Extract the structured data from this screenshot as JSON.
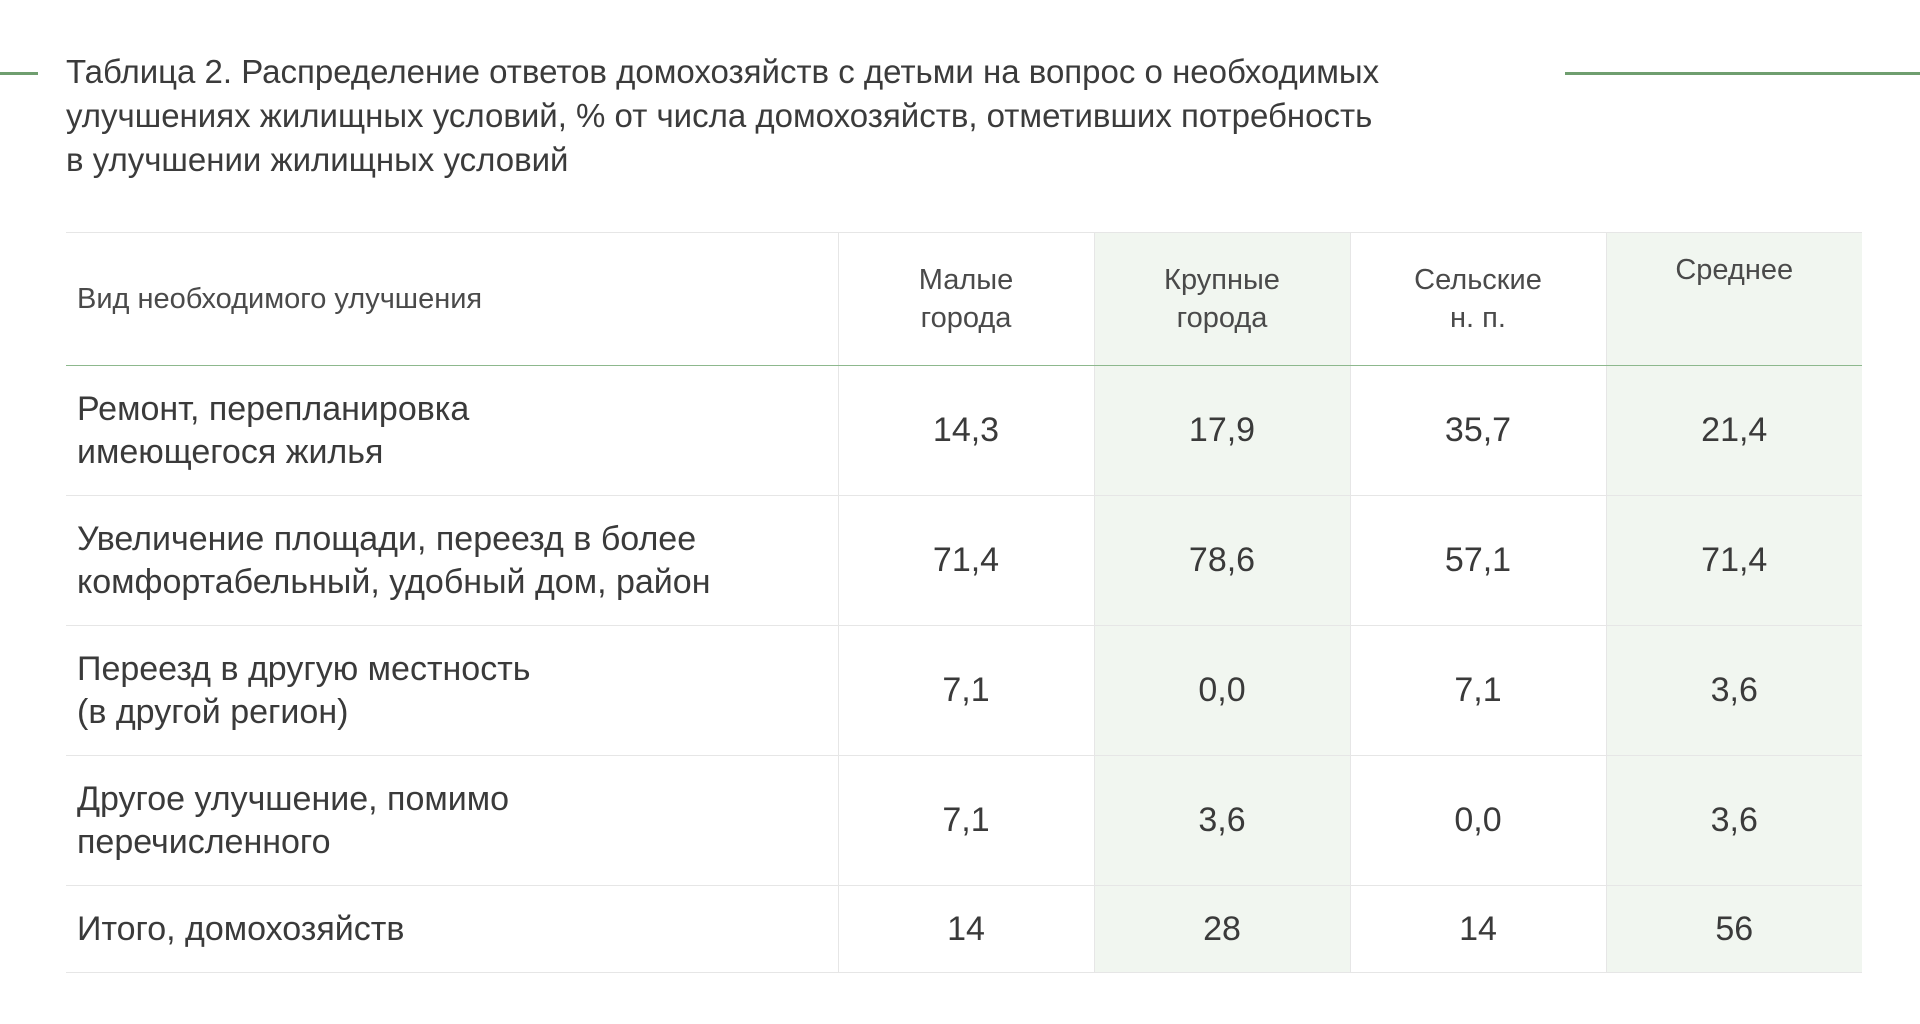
{
  "title": {
    "line1": "Таблица 2. Распределение ответов домохозяйств с детьми на вопрос о необходимых",
    "line2": "улучшениях жилищных условий, % от числа домохозяйств, отметивших потребность",
    "line3": "в улучшении жилищных условий"
  },
  "accent_color": "#6f9e6f",
  "shade_color": "#f1f6f0",
  "table": {
    "headers": [
      {
        "line1": "Вид необходимого улучшения",
        "line2": ""
      },
      {
        "line1": "Малые",
        "line2": "города"
      },
      {
        "line1": "Крупные",
        "line2": "города"
      },
      {
        "line1": "Сельские",
        "line2": "н. п."
      },
      {
        "line1": "Среднее",
        "line2": ""
      }
    ],
    "rows": [
      {
        "label1": "Ремонт, перепланировка",
        "label2": "имеющегося жилья",
        "values": [
          "14,3",
          "17,9",
          "35,7",
          "21,4"
        ]
      },
      {
        "label1": "Увеличение площади, переезд в более",
        "label2": "комфортабельный, удобный дом, район",
        "values": [
          "71,4",
          "78,6",
          "57,1",
          "71,4"
        ]
      },
      {
        "label1": "Переезд в другую местность",
        "label2": "(в другой регион)",
        "values": [
          "7,1",
          "0,0",
          "7,1",
          "3,6"
        ]
      },
      {
        "label1": "Другое улучшение, помимо",
        "label2": "перечисленного",
        "values": [
          "7,1",
          "3,6",
          "0,0",
          "3,6"
        ]
      },
      {
        "label1": "Итого, домохозяйств",
        "label2": "",
        "values": [
          "14",
          "28",
          "14",
          "56"
        ]
      }
    ]
  }
}
